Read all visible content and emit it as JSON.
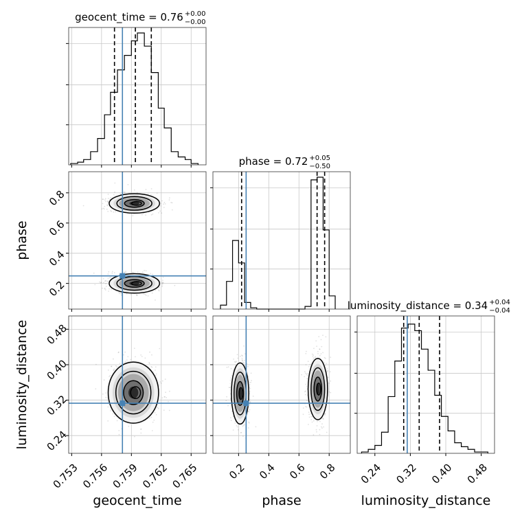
{
  "chart_data": {
    "type": "corner-plot",
    "truth_color": "#4682b4",
    "parameters": [
      {
        "name": "geocent_time",
        "axis_label": "geocent_time",
        "title": "geocent_time = 0.76",
        "title_plus": "+0.00",
        "title_minus": "−0.00",
        "range": [
          0.7527,
          0.7665
        ],
        "ticks": [
          "0.753",
          "0.756",
          "0.759",
          "0.762",
          "0.765"
        ],
        "tick_values": [
          0.753,
          0.756,
          0.759,
          0.762,
          0.765
        ],
        "truth": 0.7581,
        "quantiles": [
          0.7573,
          0.7594,
          0.761
        ],
        "hist_edges": [
          0.7529,
          0.7536,
          0.7542,
          0.7549,
          0.7556,
          0.7563,
          0.7569,
          0.7576,
          0.7583,
          0.759,
          0.7596,
          0.7603,
          0.761,
          0.7617,
          0.7623,
          0.763,
          0.7637,
          0.7644,
          0.765,
          0.7657
        ],
        "hist_counts": [
          0.01,
          0.02,
          0.04,
          0.1,
          0.2,
          0.38,
          0.55,
          0.72,
          0.83,
          0.94,
          1.0,
          0.9,
          0.7,
          0.43,
          0.28,
          0.1,
          0.06,
          0.04,
          0.01
        ]
      },
      {
        "name": "phase",
        "axis_label": "phase",
        "title": "phase = 0.72",
        "title_plus": "+0.05",
        "title_minus": "−0.50",
        "range": [
          0.03,
          0.94
        ],
        "ticks": [
          "0.2",
          "0.4",
          "0.6",
          "0.8"
        ],
        "tick_values": [
          0.2,
          0.4,
          0.6,
          0.8
        ],
        "truth": 0.25,
        "quantiles": [
          0.22,
          0.72,
          0.77
        ],
        "hist_edges": [
          0.08,
          0.12,
          0.16,
          0.2,
          0.24,
          0.28,
          0.32,
          0.36,
          0.4,
          0.44,
          0.48,
          0.52,
          0.56,
          0.6,
          0.64,
          0.68,
          0.72,
          0.76,
          0.8,
          0.84
        ],
        "hist_counts": [
          0.03,
          0.21,
          0.52,
          0.35,
          0.05,
          0.01,
          0.0,
          0.0,
          0.0,
          0.0,
          0.0,
          0.0,
          0.0,
          0.0,
          0.02,
          0.98,
          1.0,
          0.6,
          0.1
        ]
      },
      {
        "name": "luminosity_distance",
        "axis_label": "luminosity_distance",
        "title": "luminosity_distance = 0.34",
        "title_plus": "+0.04",
        "title_minus": "−0.04",
        "range": [
          0.2,
          0.51
        ],
        "ticks": [
          "0.24",
          "0.32",
          "0.40",
          "0.48"
        ],
        "tick_values": [
          0.24,
          0.32,
          0.4,
          0.48
        ],
        "truth": 0.313,
        "quantiles": [
          0.305,
          0.34,
          0.386
        ],
        "hist_edges": [
          0.21,
          0.225,
          0.24,
          0.255,
          0.27,
          0.285,
          0.3,
          0.315,
          0.33,
          0.345,
          0.36,
          0.375,
          0.39,
          0.405,
          0.42,
          0.435,
          0.45,
          0.465,
          0.48,
          0.495
        ],
        "hist_counts": [
          0.01,
          0.03,
          0.06,
          0.16,
          0.43,
          0.7,
          0.95,
          0.98,
          0.93,
          0.79,
          0.63,
          0.44,
          0.28,
          0.17,
          0.08,
          0.05,
          0.03,
          0.01,
          0.01
        ]
      }
    ],
    "pairs": [
      {
        "x": "geocent_time",
        "y": "phase",
        "modes": [
          {
            "cx": 0.7593,
            "cy": 0.73,
            "sx": 0.0011,
            "sy": 0.028
          },
          {
            "cx": 0.7593,
            "cy": 0.2,
            "sx": 0.0011,
            "sy": 0.028
          }
        ]
      },
      {
        "x": "geocent_time",
        "y": "luminosity_distance",
        "modes": [
          {
            "cx": 0.7592,
            "cy": 0.337,
            "sx": 0.0011,
            "sy": 0.03
          }
        ]
      },
      {
        "x": "phase",
        "y": "luminosity_distance",
        "modes": [
          {
            "cx": 0.21,
            "cy": 0.335,
            "sx": 0.025,
            "sy": 0.03
          },
          {
            "cx": 0.725,
            "cy": 0.345,
            "sx": 0.028,
            "sy": 0.03
          }
        ]
      }
    ]
  }
}
